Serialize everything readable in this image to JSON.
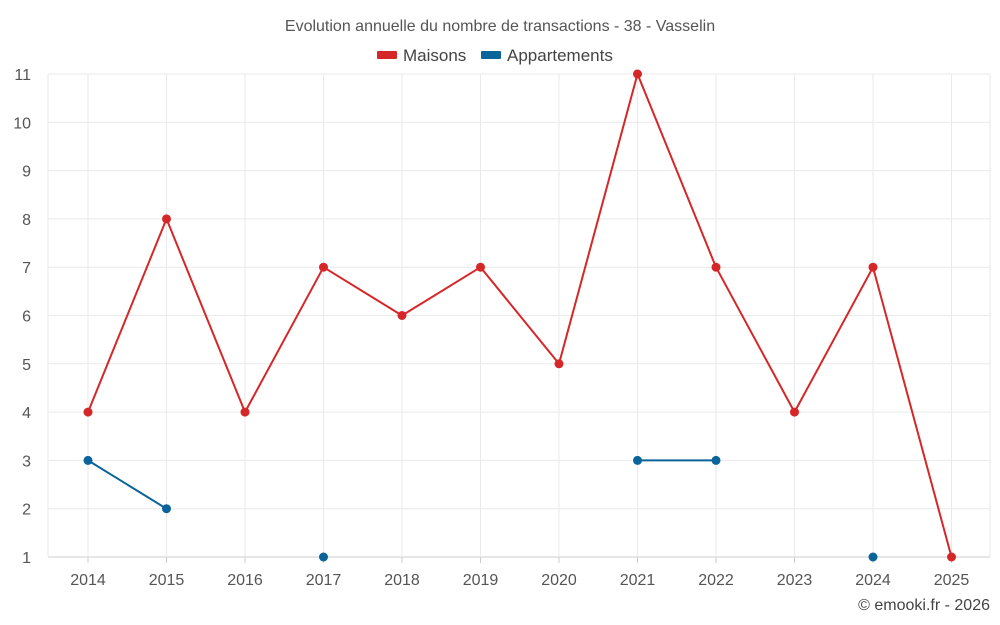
{
  "chart_data": {
    "type": "line",
    "title": "Evolution annuelle du nombre de transactions - 38 - Vasselin",
    "categories": [
      "2014",
      "2015",
      "2016",
      "2017",
      "2018",
      "2019",
      "2020",
      "2021",
      "2022",
      "2023",
      "2024",
      "2025"
    ],
    "ylim": [
      1,
      11
    ],
    "yticks": [
      1,
      2,
      3,
      4,
      5,
      6,
      7,
      8,
      9,
      10,
      11
    ],
    "grid": true,
    "legend_position": "top-center",
    "series": [
      {
        "name": "Maisons",
        "color": "#d62728",
        "values": [
          4,
          8,
          4,
          7,
          6,
          7,
          5,
          11,
          7,
          4,
          7,
          1
        ]
      },
      {
        "name": "Appartements",
        "color": "#0a6399",
        "values": [
          3,
          2,
          null,
          1,
          null,
          null,
          null,
          3,
          3,
          null,
          1,
          null
        ]
      }
    ]
  },
  "credit": "© emooki.fr - 2026"
}
